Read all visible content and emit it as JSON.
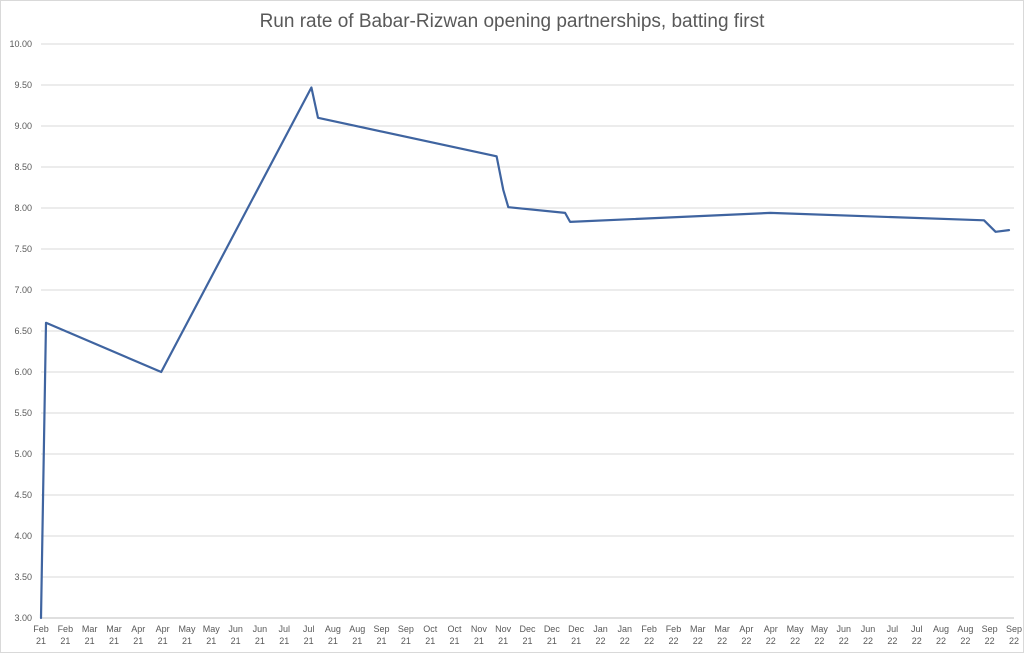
{
  "chart_data": {
    "type": "line",
    "title": "Run rate of Babar-Rizwan opening partnerships, batting first",
    "xlabel": "",
    "ylabel": "",
    "ylim": [
      3.0,
      10.0
    ],
    "grid": true,
    "legend": "none",
    "line_color": "#3f64a0",
    "y_ticks": [
      "3.00",
      "3.50",
      "4.00",
      "4.50",
      "5.00",
      "5.50",
      "6.00",
      "6.50",
      "7.00",
      "7.50",
      "8.00",
      "8.50",
      "9.00",
      "9.50",
      "10.00"
    ],
    "x_ticks": [
      [
        "Feb",
        "21"
      ],
      [
        "Feb",
        "21"
      ],
      [
        "Mar",
        "21"
      ],
      [
        "Mar",
        "21"
      ],
      [
        "Apr",
        "21"
      ],
      [
        "Apr",
        "21"
      ],
      [
        "May",
        "21"
      ],
      [
        "May",
        "21"
      ],
      [
        "Jun",
        "21"
      ],
      [
        "Jun",
        "21"
      ],
      [
        "Jul",
        "21"
      ],
      [
        "Jul",
        "21"
      ],
      [
        "Aug",
        "21"
      ],
      [
        "Aug",
        "21"
      ],
      [
        "Sep",
        "21"
      ],
      [
        "Sep",
        "21"
      ],
      [
        "Oct",
        "21"
      ],
      [
        "Oct",
        "21"
      ],
      [
        "Nov",
        "21"
      ],
      [
        "Nov",
        "21"
      ],
      [
        "Dec",
        "21"
      ],
      [
        "Dec",
        "21"
      ],
      [
        "Dec",
        "21"
      ],
      [
        "Jan",
        "22"
      ],
      [
        "Jan",
        "22"
      ],
      [
        "Feb",
        "22"
      ],
      [
        "Feb",
        "22"
      ],
      [
        "Mar",
        "22"
      ],
      [
        "Mar",
        "22"
      ],
      [
        "Apr",
        "22"
      ],
      [
        "Apr",
        "22"
      ],
      [
        "May",
        "22"
      ],
      [
        "May",
        "22"
      ],
      [
        "Jun",
        "22"
      ],
      [
        "Jun",
        "22"
      ],
      [
        "Jul",
        "22"
      ],
      [
        "Jul",
        "22"
      ],
      [
        "Aug",
        "22"
      ],
      [
        "Aug",
        "22"
      ],
      [
        "Sep",
        "22"
      ],
      [
        "Sep",
        "22"
      ]
    ],
    "series": [
      {
        "points": [
          {
            "x": "2021-02-01",
            "y": 3.0
          },
          {
            "x": "2021-02-04",
            "y": 6.6
          },
          {
            "x": "2021-04-14",
            "y": 6.0
          },
          {
            "x": "2021-07-13",
            "y": 9.47
          },
          {
            "x": "2021-07-17",
            "y": 9.1
          },
          {
            "x": "2021-11-01",
            "y": 8.63
          },
          {
            "x": "2021-11-05",
            "y": 8.22
          },
          {
            "x": "2021-11-08",
            "y": 8.01
          },
          {
            "x": "2021-12-12",
            "y": 7.94
          },
          {
            "x": "2021-12-15",
            "y": 7.83
          },
          {
            "x": "2022-04-14",
            "y": 7.94
          },
          {
            "x": "2022-08-20",
            "y": 7.85
          },
          {
            "x": "2022-08-27",
            "y": 7.71
          },
          {
            "x": "2022-09-04",
            "y": 7.73
          }
        ]
      }
    ]
  }
}
